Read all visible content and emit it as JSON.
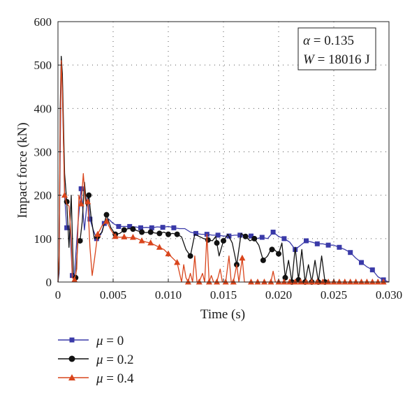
{
  "chart_data": {
    "type": "line",
    "xlabel": "Time (s)",
    "ylabel": "Impact force (kN)",
    "xlim": [
      0,
      0.03
    ],
    "ylim": [
      0,
      600
    ],
    "x_ticks": [
      "0",
      "0.005",
      "0.010",
      "0.015",
      "0.020",
      "0.025",
      "0.030"
    ],
    "y_ticks": [
      "0",
      "100",
      "200",
      "300",
      "400",
      "500",
      "600"
    ],
    "grid": true,
    "legend_position": "below",
    "annotation": {
      "alpha_symbol": "α",
      "alpha_text": " = 0.135",
      "w_symbol": "W",
      "w_text": " = 18016 J"
    },
    "series": [
      {
        "name": "μ = 0",
        "symbol": "μ",
        "value_text": " = 0",
        "color": "#3a3aa8",
        "marker": "square",
        "points": [
          [
            0,
            0
          ],
          [
            0.0001,
            20
          ],
          [
            0.0002,
            300
          ],
          [
            0.0003,
            500
          ],
          [
            0.0004,
            460
          ],
          [
            0.0006,
            200
          ],
          [
            0.0008,
            125
          ],
          [
            0.0011,
            120
          ],
          [
            0.0013,
            15
          ],
          [
            0.0015,
            20
          ],
          [
            0.0018,
            130
          ],
          [
            0.0021,
            215
          ],
          [
            0.0024,
            120
          ],
          [
            0.0027,
            200
          ],
          [
            0.0029,
            145
          ],
          [
            0.0032,
            120
          ],
          [
            0.0035,
            100
          ],
          [
            0.0039,
            110
          ],
          [
            0.0042,
            135
          ],
          [
            0.0046,
            145
          ],
          [
            0.005,
            135
          ],
          [
            0.0055,
            128
          ],
          [
            0.006,
            128
          ],
          [
            0.0065,
            128
          ],
          [
            0.007,
            127
          ],
          [
            0.0075,
            125
          ],
          [
            0.008,
            126
          ],
          [
            0.0085,
            125
          ],
          [
            0.009,
            127
          ],
          [
            0.0095,
            126
          ],
          [
            0.01,
            128
          ],
          [
            0.0105,
            125
          ],
          [
            0.011,
            123
          ],
          [
            0.0115,
            123
          ],
          [
            0.012,
            115
          ],
          [
            0.0125,
            112
          ],
          [
            0.013,
            110
          ],
          [
            0.0135,
            110
          ],
          [
            0.014,
            108
          ],
          [
            0.0145,
            108
          ],
          [
            0.015,
            106
          ],
          [
            0.0155,
            106
          ],
          [
            0.016,
            108
          ],
          [
            0.0165,
            108
          ],
          [
            0.017,
            106
          ],
          [
            0.0175,
            106
          ],
          [
            0.018,
            100
          ],
          [
            0.0185,
            103
          ],
          [
            0.019,
            100
          ],
          [
            0.0195,
            115
          ],
          [
            0.02,
            105
          ],
          [
            0.0205,
            100
          ],
          [
            0.021,
            92
          ],
          [
            0.0215,
            75
          ],
          [
            0.022,
            85
          ],
          [
            0.0225,
            95
          ],
          [
            0.023,
            92
          ],
          [
            0.0235,
            88
          ],
          [
            0.024,
            88
          ],
          [
            0.0245,
            85
          ],
          [
            0.025,
            85
          ],
          [
            0.0255,
            80
          ],
          [
            0.026,
            75
          ],
          [
            0.0265,
            68
          ],
          [
            0.027,
            55
          ],
          [
            0.0275,
            45
          ],
          [
            0.028,
            35
          ],
          [
            0.0285,
            28
          ],
          [
            0.029,
            12
          ],
          [
            0.0295,
            5
          ],
          [
            0.03,
            0
          ]
        ],
        "marker_x": [
          0.0008,
          0.0013,
          0.0021,
          0.0029,
          0.0035,
          0.0042,
          0.0055,
          0.0065,
          0.0075,
          0.0085,
          0.0095,
          0.0105,
          0.0125,
          0.0135,
          0.0145,
          0.0155,
          0.0165,
          0.0175,
          0.0185,
          0.0195,
          0.0205,
          0.0215,
          0.0225,
          0.0235,
          0.0245,
          0.0255,
          0.0265,
          0.0275,
          0.0285,
          0.0295
        ]
      },
      {
        "name": "μ = 0.2",
        "symbol": "μ",
        "value_text": " = 0.2",
        "color": "#111111",
        "marker": "circle",
        "points": [
          [
            0,
            0
          ],
          [
            0.0001,
            30
          ],
          [
            0.0002,
            400
          ],
          [
            0.0003,
            520
          ],
          [
            0.0004,
            480
          ],
          [
            0.0006,
            250
          ],
          [
            0.0008,
            185
          ],
          [
            0.001,
            80
          ],
          [
            0.0012,
            200
          ],
          [
            0.0014,
            20
          ],
          [
            0.0016,
            10
          ],
          [
            0.0018,
            90
          ],
          [
            0.002,
            95
          ],
          [
            0.0022,
            140
          ],
          [
            0.0024,
            230
          ],
          [
            0.0026,
            175
          ],
          [
            0.0028,
            200
          ],
          [
            0.003,
            150
          ],
          [
            0.0033,
            100
          ],
          [
            0.0036,
            105
          ],
          [
            0.004,
            115
          ],
          [
            0.0044,
            155
          ],
          [
            0.0048,
            125
          ],
          [
            0.0052,
            110
          ],
          [
            0.0056,
            112
          ],
          [
            0.006,
            120
          ],
          [
            0.0064,
            123
          ],
          [
            0.0068,
            122
          ],
          [
            0.0072,
            118
          ],
          [
            0.0076,
            115
          ],
          [
            0.008,
            114
          ],
          [
            0.0084,
            115
          ],
          [
            0.0088,
            113
          ],
          [
            0.0092,
            112
          ],
          [
            0.0096,
            115
          ],
          [
            0.01,
            110
          ],
          [
            0.0104,
            112
          ],
          [
            0.0108,
            110
          ],
          [
            0.0112,
            104
          ],
          [
            0.0116,
            75
          ],
          [
            0.012,
            60
          ],
          [
            0.0124,
            110
          ],
          [
            0.0128,
            105
          ],
          [
            0.0132,
            100
          ],
          [
            0.0136,
            97
          ],
          [
            0.014,
            95
          ],
          [
            0.0143,
            105
          ],
          [
            0.0146,
            60
          ],
          [
            0.015,
            95
          ],
          [
            0.0154,
            110
          ],
          [
            0.0158,
            90
          ],
          [
            0.0162,
            40
          ],
          [
            0.0166,
            112
          ],
          [
            0.017,
            105
          ],
          [
            0.0174,
            95
          ],
          [
            0.0178,
            100
          ],
          [
            0.0182,
            85
          ],
          [
            0.0186,
            50
          ],
          [
            0.019,
            60
          ],
          [
            0.0193,
            75
          ],
          [
            0.0196,
            75
          ],
          [
            0.02,
            65
          ],
          [
            0.0203,
            90
          ],
          [
            0.0206,
            10
          ],
          [
            0.0209,
            50
          ],
          [
            0.0212,
            0
          ],
          [
            0.0215,
            80
          ],
          [
            0.0218,
            5
          ],
          [
            0.0221,
            75
          ],
          [
            0.0224,
            0
          ],
          [
            0.0227,
            40
          ],
          [
            0.023,
            0
          ],
          [
            0.0233,
            50
          ],
          [
            0.0236,
            0
          ],
          [
            0.0239,
            60
          ],
          [
            0.0242,
            0
          ],
          [
            0.0245,
            0
          ]
        ],
        "marker_x": [
          0.0008,
          0.0016,
          0.002,
          0.0028,
          0.0036,
          0.0044,
          0.0052,
          0.006,
          0.0068,
          0.0076,
          0.0084,
          0.0092,
          0.01,
          0.0108,
          0.012,
          0.0136,
          0.0144,
          0.015,
          0.0162,
          0.017,
          0.0178,
          0.0186,
          0.0194,
          0.02,
          0.0206,
          0.0212,
          0.0218,
          0.0224,
          0.023,
          0.0236,
          0.0242
        ]
      },
      {
        "name": "μ = 0.4",
        "symbol": "μ",
        "value_text": " = 0.4",
        "color": "#d9451c",
        "marker": "triangle",
        "points": [
          [
            0,
            0
          ],
          [
            0.0001,
            60
          ],
          [
            0.0002,
            350
          ],
          [
            0.0003,
            510
          ],
          [
            0.0004,
            440
          ],
          [
            0.0006,
            200
          ],
          [
            0.0008,
            180
          ],
          [
            0.001,
            175
          ],
          [
            0.0012,
            100
          ],
          [
            0.0013,
            10
          ],
          [
            0.0015,
            5
          ],
          [
            0.0017,
            30
          ],
          [
            0.0019,
            200
          ],
          [
            0.0021,
            180
          ],
          [
            0.0023,
            250
          ],
          [
            0.0025,
            180
          ],
          [
            0.0027,
            185
          ],
          [
            0.0029,
            80
          ],
          [
            0.0031,
            15
          ],
          [
            0.0033,
            50
          ],
          [
            0.0036,
            110
          ],
          [
            0.004,
            130
          ],
          [
            0.0044,
            140
          ],
          [
            0.0048,
            120
          ],
          [
            0.0052,
            105
          ],
          [
            0.0056,
            103
          ],
          [
            0.006,
            104
          ],
          [
            0.0064,
            102
          ],
          [
            0.0068,
            103
          ],
          [
            0.0072,
            100
          ],
          [
            0.0076,
            95
          ],
          [
            0.008,
            92
          ],
          [
            0.0084,
            90
          ],
          [
            0.0088,
            85
          ],
          [
            0.0092,
            80
          ],
          [
            0.0096,
            75
          ],
          [
            0.01,
            65
          ],
          [
            0.0104,
            55
          ],
          [
            0.0108,
            45
          ],
          [
            0.0112,
            0
          ],
          [
            0.0114,
            40
          ],
          [
            0.0116,
            10
          ],
          [
            0.0118,
            0
          ],
          [
            0.012,
            20
          ],
          [
            0.0122,
            0
          ],
          [
            0.0124,
            60
          ],
          [
            0.0126,
            0
          ],
          [
            0.0128,
            0
          ],
          [
            0.0131,
            20
          ],
          [
            0.0133,
            0
          ],
          [
            0.0135,
            110
          ],
          [
            0.0137,
            0
          ],
          [
            0.0139,
            15
          ],
          [
            0.0141,
            0
          ],
          [
            0.0144,
            0
          ],
          [
            0.0147,
            30
          ],
          [
            0.0149,
            0
          ],
          [
            0.0152,
            0
          ],
          [
            0.0155,
            60
          ],
          [
            0.0157,
            0
          ],
          [
            0.0159,
            0
          ],
          [
            0.0162,
            40
          ],
          [
            0.0164,
            0
          ],
          [
            0.0167,
            55
          ],
          [
            0.0169,
            0
          ],
          [
            0.0172,
            0
          ],
          [
            0.0175,
            0
          ],
          [
            0.0178,
            0
          ],
          [
            0.0181,
            0
          ],
          [
            0.0184,
            0
          ],
          [
            0.0187,
            0
          ],
          [
            0.019,
            0
          ],
          [
            0.0193,
            0
          ],
          [
            0.0195,
            25
          ],
          [
            0.0197,
            0
          ],
          [
            0.02,
            0
          ],
          [
            0.0205,
            0
          ],
          [
            0.021,
            0
          ],
          [
            0.0215,
            0
          ],
          [
            0.022,
            0
          ],
          [
            0.0225,
            0
          ],
          [
            0.023,
            0
          ],
          [
            0.0235,
            0
          ],
          [
            0.024,
            0
          ],
          [
            0.025,
            0
          ],
          [
            0.026,
            0
          ],
          [
            0.027,
            0
          ],
          [
            0.028,
            0
          ],
          [
            0.029,
            0
          ],
          [
            0.03,
            0
          ]
        ],
        "marker_x": [
          0.0006,
          0.0015,
          0.0021,
          0.0027,
          0.0036,
          0.0044,
          0.0052,
          0.006,
          0.0068,
          0.0076,
          0.0084,
          0.0092,
          0.01,
          0.0108,
          0.0118,
          0.0128,
          0.0137,
          0.0144,
          0.0152,
          0.0159,
          0.0167,
          0.0175,
          0.0181,
          0.0187,
          0.0193,
          0.02,
          0.0205,
          0.021,
          0.0215,
          0.022,
          0.0225,
          0.023,
          0.0235,
          0.024,
          0.0245,
          0.025,
          0.0255,
          0.026,
          0.0265,
          0.027,
          0.0275,
          0.028,
          0.0285,
          0.029,
          0.0295
        ]
      }
    ]
  }
}
